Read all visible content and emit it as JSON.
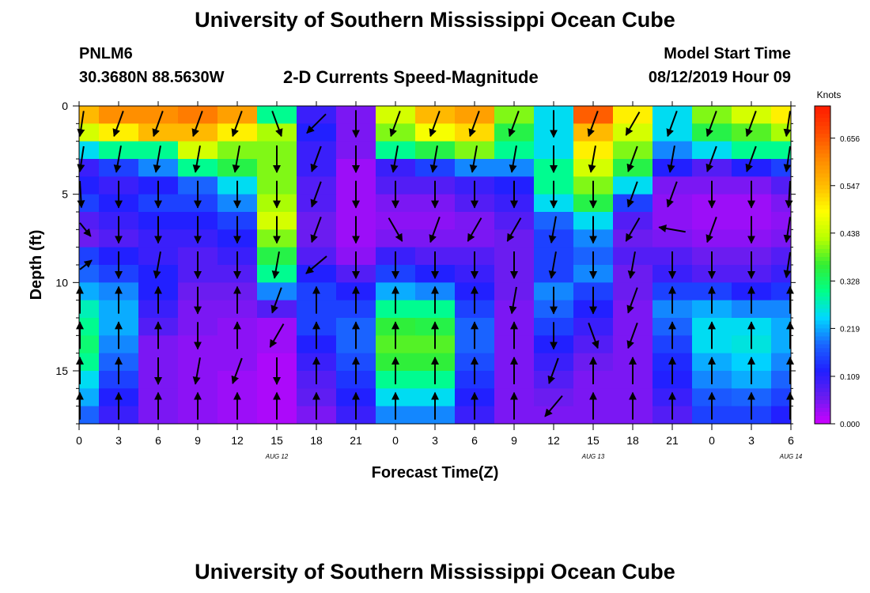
{
  "header": {
    "title": "University of Southern Mississippi Ocean Cube",
    "station_id": "PNLM6",
    "station_coords": "30.3680N 88.5630W",
    "plot_title": "2-D Currents Speed-Magnitude",
    "model_label": "Model Start Time",
    "model_time": "08/12/2019 Hour 09"
  },
  "footer": {
    "title": "University of Southern Mississippi Ocean Cube"
  },
  "colors": {
    "scale": [
      "#cc00ff",
      "#6a1cf0",
      "#2020ff",
      "#1a66ff",
      "#00d8ff",
      "#00ff88",
      "#33ee33",
      "#b8ff00",
      "#ffff00",
      "#ffbb00",
      "#ff8800",
      "#ff4a00",
      "#ff1a00"
    ]
  },
  "chart_data": {
    "type": "heatmap",
    "title": "2-D Currents Speed-Magnitude",
    "xlabel": "Forecast Time(Z)",
    "ylabel": "Depth (ft)",
    "x_ticks": [
      "0",
      "3",
      "6",
      "9",
      "12",
      "15",
      "18",
      "21",
      "0",
      "3",
      "6",
      "9",
      "12",
      "15",
      "18",
      "21",
      "0",
      "3",
      "6"
    ],
    "date_labels": [
      {
        "label": "AUG 12",
        "hour": 15
      },
      {
        "label": "AUG 13",
        "hour": 39
      },
      {
        "label": "AUG 14",
        "hour": 54
      }
    ],
    "xlim": [
      0,
      54
    ],
    "ylim": [
      0,
      18
    ],
    "y_ticks": [
      0,
      5,
      10,
      15
    ],
    "colorbar": {
      "title": "Knots",
      "min": 0.0,
      "max": 0.73,
      "ticks": [
        "0.000",
        "0.109",
        "0.219",
        "0.328",
        "0.438",
        "0.547",
        "0.656"
      ],
      "tick_values": [
        0.0,
        0.109,
        0.219,
        0.328,
        0.438,
        0.547,
        0.656
      ]
    },
    "grid": false,
    "depths": [
      0.5,
      1.5,
      2.5,
      3.5,
      4.5,
      5.5,
      6.5,
      7.5,
      8.5,
      9.5,
      10.5,
      11.5,
      12.5,
      13.5,
      14.5,
      15.5,
      16.5,
      17.5
    ],
    "hours": [
      0,
      3,
      6,
      9,
      12,
      15,
      18,
      21,
      24,
      27,
      30,
      33,
      36,
      39,
      42,
      45,
      48,
      51,
      54
    ],
    "speed_knots": [
      [
        0.55,
        0.6,
        0.6,
        0.62,
        0.58,
        0.3,
        0.1,
        0.05,
        0.45,
        0.55,
        0.58,
        0.4,
        0.25,
        0.65,
        0.5,
        0.25,
        0.4,
        0.45,
        0.5
      ],
      [
        0.45,
        0.5,
        0.55,
        0.55,
        0.5,
        0.42,
        0.12,
        0.05,
        0.4,
        0.48,
        0.52,
        0.35,
        0.25,
        0.55,
        0.45,
        0.25,
        0.35,
        0.38,
        0.42
      ],
      [
        0.25,
        0.3,
        0.3,
        0.45,
        0.4,
        0.4,
        0.1,
        0.05,
        0.3,
        0.35,
        0.4,
        0.3,
        0.25,
        0.5,
        0.4,
        0.2,
        0.25,
        0.3,
        0.3
      ],
      [
        0.1,
        0.15,
        0.2,
        0.3,
        0.35,
        0.4,
        0.1,
        0.03,
        0.1,
        0.15,
        0.2,
        0.2,
        0.3,
        0.45,
        0.35,
        0.12,
        0.08,
        0.12,
        0.15
      ],
      [
        0.12,
        0.1,
        0.12,
        0.18,
        0.25,
        0.4,
        0.08,
        0.03,
        0.08,
        0.08,
        0.1,
        0.12,
        0.3,
        0.4,
        0.25,
        0.05,
        0.05,
        0.05,
        0.08
      ],
      [
        0.15,
        0.12,
        0.15,
        0.15,
        0.2,
        0.42,
        0.08,
        0.03,
        0.05,
        0.05,
        0.08,
        0.1,
        0.25,
        0.35,
        0.15,
        0.04,
        0.03,
        0.03,
        0.05
      ],
      [
        0.08,
        0.1,
        0.12,
        0.12,
        0.15,
        0.45,
        0.06,
        0.03,
        0.04,
        0.04,
        0.05,
        0.08,
        0.18,
        0.25,
        0.08,
        0.04,
        0.03,
        0.03,
        0.04
      ],
      [
        0.06,
        0.08,
        0.1,
        0.1,
        0.12,
        0.4,
        0.06,
        0.03,
        0.05,
        0.05,
        0.05,
        0.06,
        0.15,
        0.2,
        0.06,
        0.05,
        0.04,
        0.04,
        0.05
      ],
      [
        0.15,
        0.12,
        0.1,
        0.08,
        0.1,
        0.35,
        0.08,
        0.04,
        0.1,
        0.08,
        0.08,
        0.06,
        0.15,
        0.18,
        0.08,
        0.08,
        0.06,
        0.06,
        0.08
      ],
      [
        0.18,
        0.15,
        0.12,
        0.08,
        0.08,
        0.3,
        0.12,
        0.08,
        0.15,
        0.12,
        0.1,
        0.06,
        0.15,
        0.2,
        0.06,
        0.1,
        0.08,
        0.08,
        0.1
      ],
      [
        0.22,
        0.2,
        0.12,
        0.06,
        0.06,
        0.2,
        0.15,
        0.12,
        0.22,
        0.2,
        0.12,
        0.06,
        0.2,
        0.15,
        0.06,
        0.15,
        0.15,
        0.12,
        0.14
      ],
      [
        0.28,
        0.22,
        0.1,
        0.05,
        0.05,
        0.08,
        0.15,
        0.15,
        0.3,
        0.3,
        0.15,
        0.05,
        0.18,
        0.12,
        0.05,
        0.2,
        0.22,
        0.2,
        0.2
      ],
      [
        0.3,
        0.22,
        0.08,
        0.05,
        0.04,
        0.03,
        0.15,
        0.18,
        0.36,
        0.35,
        0.18,
        0.05,
        0.15,
        0.1,
        0.05,
        0.18,
        0.25,
        0.25,
        0.22
      ],
      [
        0.32,
        0.2,
        0.05,
        0.04,
        0.04,
        0.03,
        0.12,
        0.18,
        0.38,
        0.38,
        0.18,
        0.05,
        0.12,
        0.08,
        0.05,
        0.15,
        0.25,
        0.26,
        0.22
      ],
      [
        0.3,
        0.18,
        0.05,
        0.04,
        0.04,
        0.02,
        0.1,
        0.16,
        0.36,
        0.36,
        0.16,
        0.05,
        0.1,
        0.06,
        0.05,
        0.13,
        0.22,
        0.24,
        0.2
      ],
      [
        0.25,
        0.15,
        0.05,
        0.04,
        0.03,
        0.02,
        0.08,
        0.14,
        0.3,
        0.3,
        0.14,
        0.05,
        0.08,
        0.05,
        0.05,
        0.12,
        0.2,
        0.22,
        0.18
      ],
      [
        0.22,
        0.12,
        0.05,
        0.04,
        0.03,
        0.02,
        0.07,
        0.12,
        0.25,
        0.25,
        0.12,
        0.05,
        0.06,
        0.05,
        0.05,
        0.1,
        0.17,
        0.18,
        0.15
      ],
      [
        0.18,
        0.1,
        0.05,
        0.04,
        0.03,
        0.02,
        0.05,
        0.1,
        0.2,
        0.2,
        0.1,
        0.05,
        0.05,
        0.05,
        0.05,
        0.08,
        0.15,
        0.15,
        0.12
      ]
    ],
    "vector_depths": [
      1,
      3,
      5,
      7,
      9,
      11,
      13,
      15,
      17
    ],
    "vector_direction_deg": [
      [
        200,
        200,
        200,
        200,
        200,
        160,
        225,
        180,
        200,
        200,
        200,
        200,
        180,
        200,
        210,
        200,
        200,
        200,
        200
      ],
      [
        200,
        190,
        190,
        190,
        190,
        180,
        200,
        180,
        190,
        190,
        190,
        190,
        180,
        190,
        200,
        190,
        200,
        200,
        200
      ],
      [
        170,
        180,
        180,
        180,
        180,
        180,
        200,
        180,
        180,
        180,
        180,
        180,
        180,
        180,
        200,
        200,
        180,
        180,
        190
      ],
      [
        120,
        180,
        180,
        180,
        180,
        180,
        200,
        180,
        150,
        200,
        210,
        210,
        190,
        180,
        210,
        280,
        200,
        180,
        200
      ],
      [
        70,
        180,
        190,
        180,
        180,
        190,
        230,
        180,
        180,
        180,
        180,
        180,
        190,
        180,
        190,
        180,
        180,
        180,
        200
      ],
      [
        0,
        0,
        0,
        180,
        0,
        200,
        0,
        0,
        0,
        0,
        0,
        190,
        180,
        180,
        200,
        0,
        0,
        0,
        0
      ],
      [
        0,
        0,
        0,
        180,
        0,
        210,
        0,
        0,
        0,
        0,
        0,
        0,
        180,
        160,
        200,
        0,
        0,
        0,
        0
      ],
      [
        0,
        0,
        180,
        190,
        200,
        180,
        0,
        0,
        0,
        0,
        0,
        0,
        200,
        0,
        0,
        0,
        0,
        0,
        0
      ],
      [
        0,
        0,
        0,
        0,
        0,
        0,
        0,
        0,
        0,
        0,
        0,
        0,
        220,
        0,
        0,
        0,
        0,
        0,
        0
      ]
    ]
  }
}
